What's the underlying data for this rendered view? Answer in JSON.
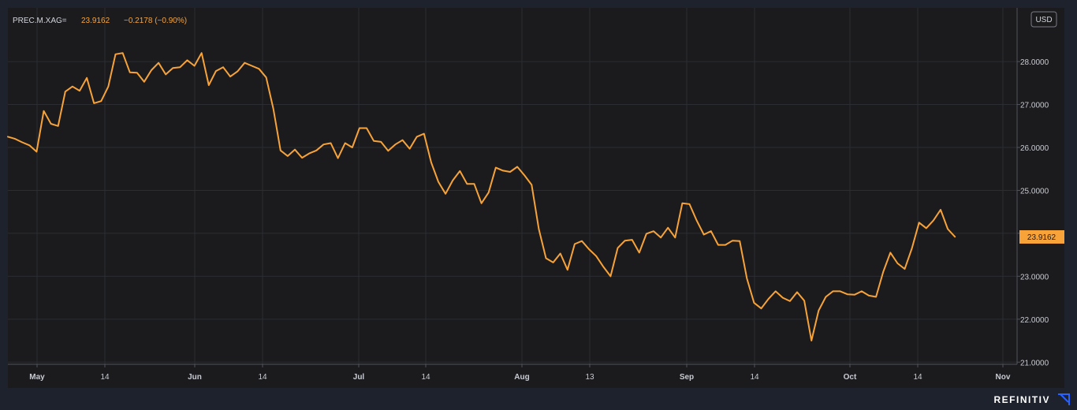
{
  "header": {
    "symbol": "PREC.M.XAG=",
    "last": "23.9162",
    "change": "−0.2178 (−0.90%)"
  },
  "currency": "USD",
  "last_price_tag": "23.9162",
  "brand": "REFINITIV",
  "colors": {
    "background": "#1e222d",
    "plot_background": "#1b1b1d",
    "grid": "#2b2d33",
    "line": "#f7a33a",
    "tag": "#f7a33a",
    "header_value": "#f7a33a",
    "brand_mark": "#2962ff"
  },
  "chart_data": {
    "type": "line",
    "series": [
      {
        "values": [
          26.25,
          26.2,
          26.12,
          26.05,
          25.9,
          26.85,
          26.55,
          26.5,
          27.3,
          27.42,
          27.32,
          27.62,
          27.03,
          27.08,
          27.42,
          28.17,
          28.2,
          27.75,
          27.74,
          27.53,
          27.8,
          27.97,
          27.7,
          27.85,
          27.87,
          28.03,
          27.9,
          28.2,
          27.45,
          27.78,
          27.87,
          27.65,
          27.77,
          27.97,
          27.9,
          27.83,
          27.63,
          26.9,
          25.93,
          25.8,
          25.95,
          25.76,
          25.86,
          25.93,
          26.07,
          26.1,
          25.75,
          26.1,
          26.0,
          26.45,
          26.45,
          26.15,
          26.13,
          25.92,
          26.07,
          26.17,
          25.97,
          26.25,
          26.32,
          25.65,
          25.2,
          24.92,
          25.23,
          25.45,
          25.15,
          25.15,
          24.7,
          24.95,
          25.53,
          25.46,
          25.43,
          25.55,
          25.35,
          25.13,
          24.1,
          23.42,
          23.32,
          23.53,
          23.15,
          23.75,
          23.82,
          23.63,
          23.47,
          23.22,
          23.0,
          23.66,
          23.83,
          23.85,
          23.55,
          23.99,
          24.05,
          23.9,
          24.13,
          23.9,
          24.7,
          24.68,
          24.3,
          23.97,
          24.05,
          23.73,
          23.73,
          23.83,
          23.82,
          22.95,
          22.38,
          22.25,
          22.47,
          22.65,
          22.5,
          22.42,
          22.63,
          22.43,
          21.5,
          22.2,
          22.52,
          22.65,
          22.65,
          22.58,
          22.57,
          22.65,
          22.55,
          22.52,
          23.1,
          23.55,
          23.3,
          23.17,
          23.65,
          24.25,
          24.12,
          24.3,
          24.55,
          24.1,
          23.92
        ]
      }
    ],
    "ylim": [
      20.95,
      29.25
    ],
    "y_ticks": [
      "21.0000",
      "22.0000",
      "23.0000",
      "24.0000",
      "25.0000",
      "26.0000",
      "27.0000",
      "28.0000"
    ],
    "x_ticks": [
      "May",
      "14",
      "Jun",
      "14",
      "Jul",
      "14",
      "Aug",
      "13",
      "Sep",
      "14",
      "Oct",
      "14",
      "Nov"
    ],
    "grid": true,
    "legend": "none"
  }
}
